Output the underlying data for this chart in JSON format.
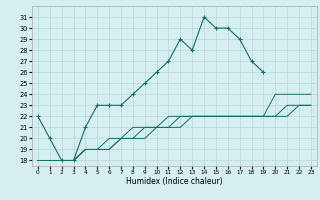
{
  "xlabel": "Humidex (Indice chaleur)",
  "x": [
    0,
    1,
    2,
    3,
    4,
    5,
    6,
    7,
    8,
    9,
    10,
    11,
    12,
    13,
    14,
    15,
    16,
    17,
    18,
    19,
    20,
    21,
    22,
    23
  ],
  "line1": [
    22,
    20,
    18,
    18,
    21,
    23,
    23,
    23,
    24,
    25,
    26,
    27,
    29,
    28,
    31,
    30,
    30,
    29,
    27,
    26,
    null,
    null,
    null,
    null
  ],
  "line2": [
    18,
    18,
    18,
    18,
    19,
    19,
    20,
    20,
    21,
    21,
    21,
    22,
    22,
    22,
    22,
    22,
    22,
    22,
    22,
    22,
    22,
    22,
    23,
    23
  ],
  "line3": [
    18,
    18,
    18,
    18,
    19,
    19,
    19,
    20,
    20,
    21,
    21,
    21,
    22,
    22,
    22,
    22,
    22,
    22,
    22,
    22,
    24,
    24,
    24,
    24
  ],
  "line4": [
    18,
    18,
    18,
    18,
    19,
    19,
    19,
    20,
    20,
    20,
    21,
    21,
    21,
    22,
    22,
    22,
    22,
    22,
    22,
    22,
    22,
    23,
    23,
    23
  ],
  "bg_color": "#d5eeef",
  "grid_color": "#b8d8da",
  "line_color": "#1a6b6b",
  "ylim": [
    17.5,
    32
  ],
  "xlim": [
    -0.5,
    23.5
  ],
  "yticks": [
    18,
    19,
    20,
    21,
    22,
    23,
    24,
    25,
    26,
    27,
    28,
    29,
    30,
    31
  ],
  "xticks": [
    0,
    1,
    2,
    3,
    4,
    5,
    6,
    7,
    8,
    9,
    10,
    11,
    12,
    13,
    14,
    15,
    16,
    17,
    18,
    19,
    20,
    21,
    22,
    23
  ]
}
